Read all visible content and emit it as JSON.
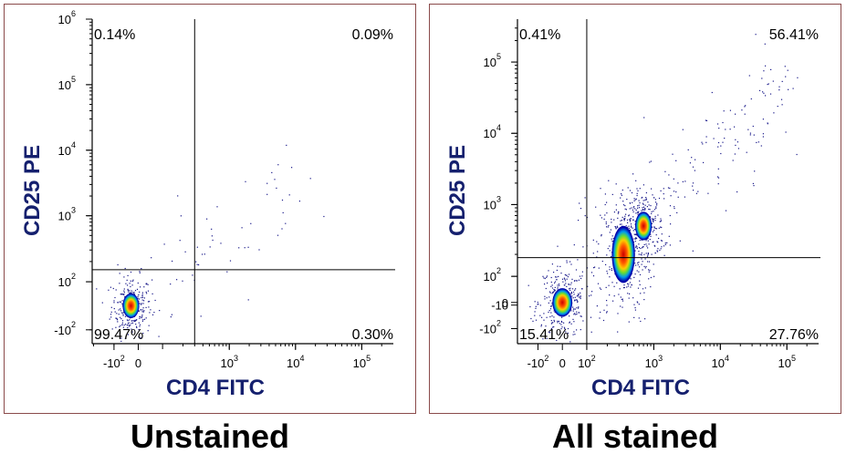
{
  "chart_data": [
    {
      "type": "scatter",
      "title": "Unstained",
      "xlabel": "CD4 FITC",
      "ylabel": "CD25 PE",
      "x_ticks": [
        {
          "label": "-10",
          "sup": "2",
          "v": -100
        },
        {
          "label": "0",
          "sup": "",
          "v": 0
        },
        {
          "label": "10",
          "sup": "3",
          "v": 1000
        },
        {
          "label": "10",
          "sup": "4",
          "v": 10000
        },
        {
          "label": "10",
          "sup": "5",
          "v": 100000
        }
      ],
      "y_ticks": [
        {
          "label": "-10",
          "sup": "2",
          "v": -100
        },
        {
          "label": "10",
          "sup": "2",
          "v": 100
        },
        {
          "label": "10",
          "sup": "3",
          "v": 1000
        },
        {
          "label": "10",
          "sup": "4",
          "v": 10000
        },
        {
          "label": "10",
          "sup": "5",
          "v": 100000
        },
        {
          "label": "10",
          "sup": "6",
          "v": 1000000
        }
      ],
      "gate": {
        "x": 300,
        "y": 150
      },
      "quadrants": {
        "upper_left": "0.14%",
        "upper_right": "0.09%",
        "lower_left": "99.47%",
        "lower_right": "0.30%"
      },
      "populations": [
        {
          "name": "unstained-population",
          "x": -30,
          "y": 0,
          "sx": 0.05,
          "sy": 0.07
        }
      ]
    },
    {
      "type": "scatter",
      "title": "All stained",
      "xlabel": "CD4 FITC",
      "ylabel": "CD25 PE",
      "x_ticks": [
        {
          "label": "-10",
          "sup": "2",
          "v": -100
        },
        {
          "label": "0",
          "sup": "",
          "v": 0
        },
        {
          "label": "10",
          "sup": "2",
          "v": 100
        },
        {
          "label": "10",
          "sup": "3",
          "v": 1000
        },
        {
          "label": "10",
          "sup": "4",
          "v": 10000
        },
        {
          "label": "10",
          "sup": "5",
          "v": 100000
        }
      ],
      "y_ticks": [
        {
          "label": "-10",
          "sup": "2",
          "v": -100
        },
        {
          "label": "-10",
          "sup": "",
          "v": -10
        },
        {
          "label": "0",
          "sup": "",
          "v": 0
        },
        {
          "label": "10",
          "sup": "2",
          "v": 100
        },
        {
          "label": "10",
          "sup": "3",
          "v": 1000
        },
        {
          "label": "10",
          "sup": "4",
          "v": 10000
        },
        {
          "label": "10",
          "sup": "5",
          "v": 100000
        }
      ],
      "gate": {
        "x": 100,
        "y": 180
      },
      "quadrants": {
        "upper_left": "0.41%",
        "upper_right": "56.41%",
        "lower_left": "15.41%",
        "lower_right": "27.76%"
      },
      "populations": [
        {
          "name": "double-negative-population",
          "x": 0,
          "y": 0,
          "sx": 0.06,
          "sy": 0.08
        },
        {
          "name": "cd4-cd25-positive-population",
          "x": 350,
          "y": 200,
          "sx": 0.07,
          "sy": 0.16
        },
        {
          "name": "cd25-high-population",
          "x": 700,
          "y": 500,
          "sx": 0.05,
          "sy": 0.08
        }
      ]
    }
  ]
}
